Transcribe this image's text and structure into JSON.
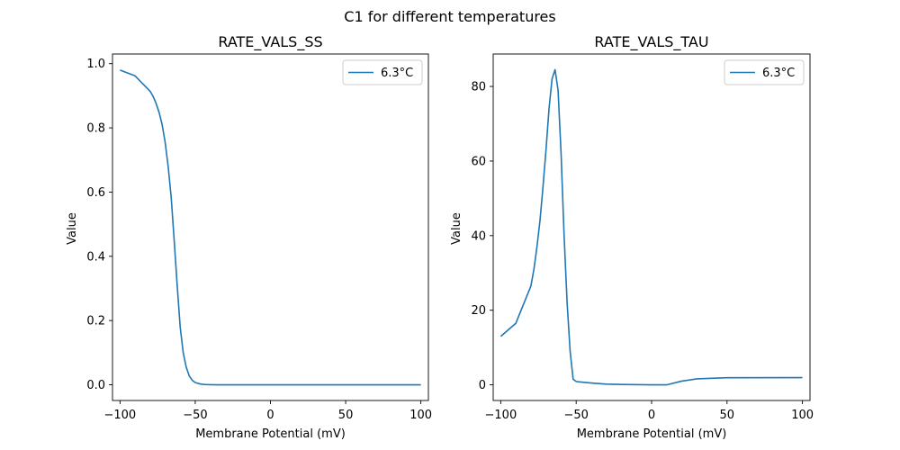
{
  "figure": {
    "title": "C1 for different temperatures"
  },
  "chart_data": [
    {
      "type": "line",
      "title": "RATE_VALS_SS",
      "xlabel": "Membrane Potential (mV)",
      "ylabel": "Value",
      "xlim": [
        -105,
        105
      ],
      "ylim": [
        -0.049,
        1.03
      ],
      "xticks": [
        -100,
        -50,
        0,
        50,
        100
      ],
      "yticks": [
        0.0,
        0.2,
        0.4,
        0.6,
        0.8,
        1.0
      ],
      "ytick_labels": [
        "0.0",
        "0.2",
        "0.4",
        "0.6",
        "0.8",
        "1.0"
      ],
      "grid": false,
      "legend": "top-right",
      "color": "#1f77b4",
      "series": [
        {
          "name": "6.3°C",
          "x": [
            -100,
            -90,
            -80,
            -78,
            -76,
            -74,
            -72,
            -70,
            -68,
            -66,
            -64,
            -62,
            -60,
            -58,
            -56,
            -54,
            -52,
            -50,
            -48,
            -46,
            -44,
            -42,
            -40,
            -35,
            -30,
            -20,
            0,
            50,
            100
          ],
          "y": [
            0.98,
            0.962,
            0.914,
            0.898,
            0.876,
            0.848,
            0.81,
            0.755,
            0.68,
            0.585,
            0.45,
            0.31,
            0.18,
            0.1,
            0.055,
            0.028,
            0.014,
            0.007,
            0.004,
            0.002,
            0.001,
            0.0005,
            0.0002,
            0.0,
            0.0,
            0.0,
            0.0,
            0.0,
            0.0
          ]
        }
      ]
    },
    {
      "type": "line",
      "title": "RATE_VALS_TAU",
      "xlabel": "Membrane Potential (mV)",
      "ylabel": "Value",
      "xlim": [
        -105,
        105
      ],
      "ylim": [
        -4.2,
        88.7
      ],
      "xticks": [
        -100,
        -50,
        0,
        50,
        100
      ],
      "yticks": [
        0,
        20,
        40,
        60,
        80
      ],
      "ytick_labels": [
        "0",
        "20",
        "40",
        "60",
        "80"
      ],
      "grid": false,
      "legend": "top-right",
      "color": "#1f77b4",
      "series": [
        {
          "name": "6.3°C",
          "x": [
            -100,
            -90,
            -80,
            -78,
            -76,
            -74,
            -72,
            -70,
            -68,
            -66,
            -64,
            -62,
            -60,
            -58,
            -56,
            -54,
            -52,
            -50,
            -48,
            -40,
            -30,
            -20,
            0,
            10,
            20,
            30,
            50,
            100
          ],
          "y": [
            13.0,
            16.5,
            26.5,
            31.0,
            37.0,
            44.0,
            53.0,
            63.0,
            74.0,
            82.0,
            84.5,
            79.0,
            62.0,
            40.0,
            22.0,
            9.0,
            1.5,
            0.9,
            0.8,
            0.5,
            0.2,
            0.1,
            0.0,
            0.0,
            1.0,
            1.6,
            1.9,
            1.95
          ]
        }
      ]
    }
  ]
}
